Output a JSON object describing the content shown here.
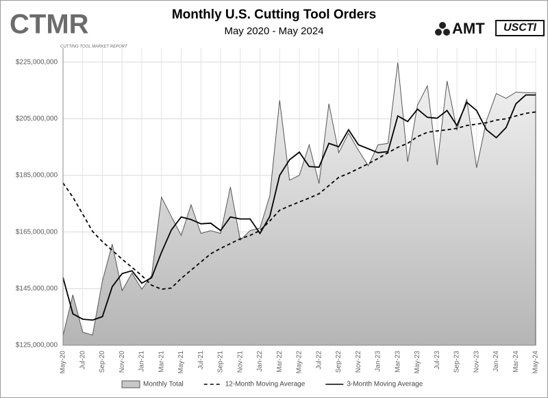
{
  "logos": {
    "ctmr": "CTMR",
    "ctmr_sub": "CUTTING TOOL MARKET REPORT",
    "amt": "AMT",
    "uscti": "USCTI"
  },
  "chart_data": {
    "type": "line",
    "title": "Monthly U.S. Cutting Tool Orders",
    "subtitle": "May 2020 - May 2024",
    "categories": [
      "May-20",
      null,
      "Jul-20",
      null,
      "Sep-20",
      null,
      "Nov-20",
      null,
      "Jan-21",
      null,
      "Mar-21",
      null,
      "May-21",
      null,
      "Jul-21",
      null,
      "Sep-21",
      null,
      "Nov-21",
      null,
      "Jan-22",
      null,
      "Mar-22",
      null,
      "May-22",
      null,
      "Jul-22",
      null,
      "Sep-22",
      null,
      "Nov-22",
      null,
      "Jan-23",
      null,
      "Mar-23",
      null,
      "May-23",
      null,
      "Jul-23",
      null,
      "Sep-23",
      null,
      "Nov-23",
      null,
      "Jan-24",
      null,
      "Mar-24",
      null,
      "May-24"
    ],
    "series": [
      {
        "name": "Monthly Total",
        "style": "area",
        "color": "#555555",
        "values": [
          128400000,
          142800000,
          129600000,
          128600000,
          147700000,
          160700000,
          144300000,
          150500000,
          144800000,
          149600000,
          177300000,
          170500000,
          163800000,
          174600000,
          164500000,
          165500000,
          164500000,
          180900000,
          162100000,
          165500000,
          166400000,
          177800000,
          211500000,
          183300000,
          185000000,
          195800000,
          182100000,
          210300000,
          193000000,
          199900000,
          193900000,
          188400000,
          195800000,
          196300000,
          224800000,
          189800000,
          209800000,
          216600000,
          188600000,
          218300000,
          201100000,
          212000000,
          187700000,
          204300000,
          213900000,
          212200000,
          214400000,
          214200000,
          214200000
        ]
      },
      {
        "name": "12-Month Moving Average",
        "style": "dashed",
        "color": "#000000",
        "values": [
          182300000,
          177300000,
          171300000,
          165200000,
          161600000,
          158500000,
          155400000,
          152500000,
          149600000,
          146200000,
          144800000,
          145200000,
          148600000,
          151500000,
          154400000,
          157300000,
          159200000,
          160900000,
          162600000,
          163800000,
          165500000,
          168900000,
          172700000,
          174200000,
          175600000,
          177000000,
          178500000,
          181400000,
          184300000,
          185700000,
          187400000,
          189100000,
          191000000,
          193000000,
          194900000,
          196300000,
          198700000,
          200200000,
          200700000,
          201100000,
          201600000,
          202600000,
          203100000,
          203600000,
          204500000,
          205000000,
          206000000,
          206900000,
          207400000
        ]
      },
      {
        "name": "3-Month Moving Average",
        "style": "solid",
        "color": "#000000",
        "values": [
          148900000,
          136100000,
          134200000,
          133900000,
          135100000,
          145700000,
          150300000,
          151300000,
          146900000,
          148900000,
          157800000,
          165700000,
          170300000,
          169400000,
          167900000,
          168100000,
          165500000,
          170300000,
          169600000,
          169600000,
          164500000,
          170500000,
          185000000,
          190500000,
          193200000,
          188100000,
          187900000,
          196300000,
          195100000,
          201100000,
          195800000,
          194400000,
          193000000,
          193400000,
          206000000,
          204000000,
          208400000,
          205500000,
          205200000,
          207900000,
          202600000,
          210800000,
          207900000,
          201100000,
          198300000,
          201900000,
          210300000,
          213400000,
          213400000
        ]
      }
    ],
    "ylim": [
      125000000,
      230000000
    ],
    "yticks": [
      {
        "value": 125000000,
        "label": "$125,000,000"
      },
      {
        "value": 145000000,
        "label": "$145,000,000"
      },
      {
        "value": 165000000,
        "label": "$165,000,000"
      },
      {
        "value": 185000000,
        "label": "$185,000,000"
      },
      {
        "value": 205000000,
        "label": "$205,000,000"
      },
      {
        "value": 225000000,
        "label": "$225,000,000"
      }
    ],
    "grid": true,
    "legend": "bottom"
  }
}
